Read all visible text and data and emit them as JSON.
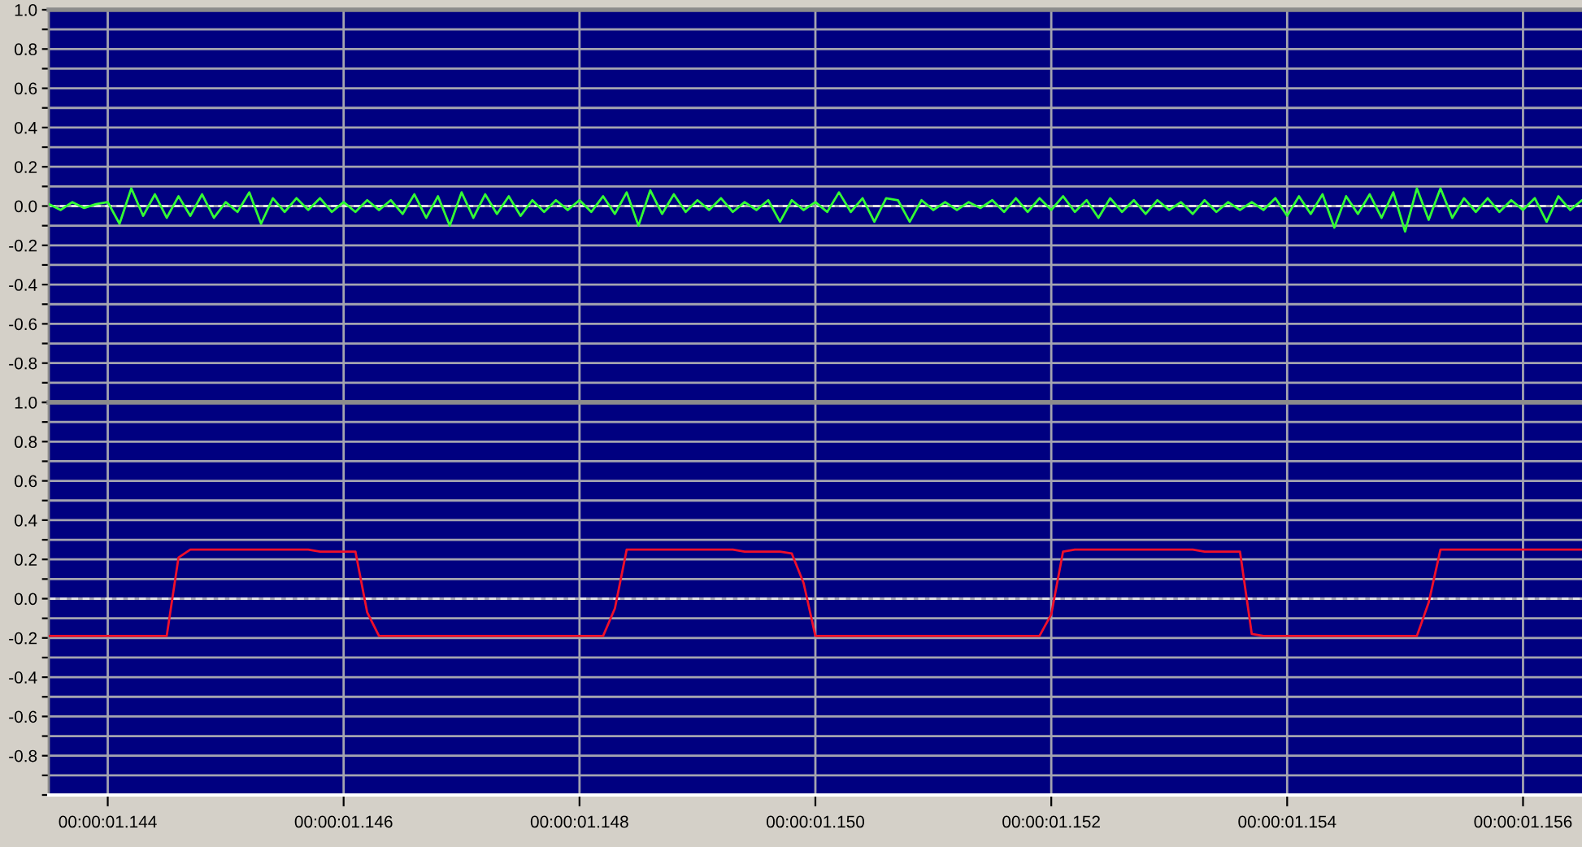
{
  "chart_data": [
    {
      "type": "line",
      "categories": [
        null,
        null,
        null,
        null,
        null,
        null,
        null,
        null,
        null,
        null,
        null,
        null,
        null,
        null,
        null,
        null,
        null,
        null,
        null,
        null,
        null,
        null,
        null,
        null,
        null,
        null,
        null,
        null,
        null,
        null,
        null,
        null,
        null,
        null,
        null,
        null,
        null,
        null,
        null,
        null,
        null,
        null,
        null,
        null,
        null,
        null,
        null,
        null,
        null,
        null,
        null,
        null,
        null,
        null,
        null,
        null,
        null,
        null,
        null,
        null,
        null,
        null,
        null,
        null,
        null,
        null,
        null,
        null,
        null,
        null,
        null,
        null,
        null,
        null,
        null,
        null,
        null,
        null,
        null,
        null,
        null,
        null,
        null,
        null,
        null,
        null,
        null,
        null,
        null,
        null,
        null,
        null,
        null,
        null,
        null,
        null,
        null,
        null,
        null,
        null,
        null,
        null,
        null,
        null,
        null,
        null,
        null,
        null,
        null,
        null,
        null,
        null,
        null,
        null,
        null,
        null,
        null,
        null,
        null,
        null,
        null,
        null,
        null,
        null,
        null,
        null,
        null,
        null,
        null,
        null,
        null
      ],
      "series": [
        {
          "color": "#33ff33",
          "values": [
            0.01,
            -0.02,
            0.02,
            -0.01,
            0.01,
            0.02,
            -0.09,
            0.09,
            -0.05,
            0.06,
            -0.06,
            0.05,
            -0.05,
            0.06,
            -0.06,
            0.02,
            -0.03,
            0.07,
            -0.09,
            0.04,
            -0.03,
            0.04,
            -0.02,
            0.04,
            -0.03,
            0.02,
            -0.03,
            0.03,
            -0.02,
            0.03,
            -0.04,
            0.06,
            -0.06,
            0.05,
            -0.1,
            0.07,
            -0.06,
            0.06,
            -0.04,
            0.05,
            -0.05,
            0.03,
            -0.03,
            0.03,
            -0.02,
            0.03,
            -0.03,
            0.05,
            -0.04,
            0.07,
            -0.1,
            0.08,
            -0.04,
            0.06,
            -0.03,
            0.03,
            -0.02,
            0.04,
            -0.03,
            0.02,
            -0.02,
            0.03,
            -0.08,
            0.03,
            -0.02,
            0.02,
            -0.03,
            0.07,
            -0.03,
            0.04,
            -0.08,
            0.04,
            0.03,
            -0.08,
            0.03,
            -0.02,
            0.02,
            -0.02,
            0.02,
            -0.01,
            0.03,
            -0.03,
            0.04,
            -0.03,
            0.04,
            -0.02,
            0.05,
            -0.03,
            0.03,
            -0.06,
            0.04,
            -0.03,
            0.03,
            -0.04,
            0.03,
            -0.02,
            0.02,
            -0.04,
            0.03,
            -0.03,
            0.02,
            -0.02,
            0.02,
            -0.02,
            0.04,
            -0.05,
            0.05,
            -0.04,
            0.06,
            -0.11,
            0.05,
            -0.04,
            0.06,
            -0.06,
            0.07,
            -0.13,
            0.09,
            -0.07,
            0.09,
            -0.06,
            0.04,
            -0.03,
            0.04,
            -0.03,
            0.03,
            -0.02,
            0.04,
            -0.08,
            0.05,
            -0.02,
            0.03
          ]
        }
      ],
      "ylim": [
        -1.0,
        1.0
      ],
      "yticks": [
        {
          "value": 1.0,
          "label": "1.0"
        },
        {
          "value": 0.9,
          "label": null
        },
        {
          "value": 0.8,
          "label": "0.8"
        },
        {
          "value": 0.7,
          "label": null
        },
        {
          "value": 0.6,
          "label": "0.6"
        },
        {
          "value": 0.5,
          "label": null
        },
        {
          "value": 0.4,
          "label": "0.4"
        },
        {
          "value": 0.3,
          "label": null
        },
        {
          "value": 0.2,
          "label": "0.2"
        },
        {
          "value": 0.1,
          "label": null
        },
        {
          "value": 0,
          "label": "0.0"
        },
        {
          "value": -0.1,
          "label": null
        },
        {
          "value": -0.2,
          "label": "-0.2"
        },
        {
          "value": -0.3,
          "label": null
        },
        {
          "value": -0.4,
          "label": "-0.4"
        },
        {
          "value": -0.5,
          "label": null
        },
        {
          "value": -0.6,
          "label": "-0.6"
        },
        {
          "value": -0.7,
          "label": null
        },
        {
          "value": -0.8,
          "label": "-0.8"
        },
        {
          "value": -0.9,
          "label": null
        },
        {
          "value": -1.0,
          "label": null
        }
      ],
      "grid": true,
      "tick_labels": "y",
      "ref_lines": [
        {
          "axis": "y",
          "value": 0,
          "color": "#e0e0e0",
          "line_style": "dashed"
        }
      ]
    },
    {
      "type": "line",
      "categories": [
        null,
        null,
        null,
        null,
        null,
        "00:00:01.144",
        null,
        null,
        null,
        null,
        null,
        null,
        null,
        null,
        null,
        null,
        null,
        null,
        null,
        null,
        null,
        null,
        null,
        null,
        null,
        "00:00:01.146",
        null,
        null,
        null,
        null,
        null,
        null,
        null,
        null,
        null,
        null,
        null,
        null,
        null,
        null,
        null,
        null,
        null,
        null,
        null,
        "00:00:01.148",
        null,
        null,
        null,
        null,
        null,
        null,
        null,
        null,
        null,
        null,
        null,
        null,
        null,
        null,
        null,
        null,
        null,
        null,
        null,
        "00:00:01.150",
        null,
        null,
        null,
        null,
        null,
        null,
        null,
        null,
        null,
        null,
        null,
        null,
        null,
        null,
        null,
        null,
        null,
        null,
        null,
        "00:00:01.152",
        null,
        null,
        null,
        null,
        null,
        null,
        null,
        null,
        null,
        null,
        null,
        null,
        null,
        null,
        null,
        null,
        null,
        null,
        null,
        "00:00:01.154",
        null,
        null,
        null,
        null,
        null,
        null,
        null,
        null,
        null,
        null,
        null,
        null,
        null,
        null,
        null,
        null,
        null,
        null,
        null,
        "00:00:01.156",
        null,
        null,
        null,
        null,
        null
      ],
      "series": [
        {
          "color": "#f0102a",
          "values": [
            -0.19,
            -0.19,
            -0.19,
            -0.19,
            -0.19,
            -0.19,
            -0.19,
            -0.19,
            -0.19,
            -0.19,
            -0.19,
            0.21,
            0.25,
            0.25,
            0.25,
            0.25,
            0.25,
            0.25,
            0.25,
            0.25,
            0.25,
            0.25,
            0.25,
            0.24,
            0.24,
            0.24,
            0.24,
            -0.07,
            -0.19,
            -0.19,
            -0.19,
            -0.19,
            -0.19,
            -0.19,
            -0.19,
            -0.19,
            -0.19,
            -0.19,
            -0.19,
            -0.19,
            -0.19,
            -0.19,
            -0.19,
            -0.19,
            -0.19,
            -0.19,
            -0.19,
            -0.19,
            -0.05,
            0.25,
            0.25,
            0.25,
            0.25,
            0.25,
            0.25,
            0.25,
            0.25,
            0.25,
            0.25,
            0.24,
            0.24,
            0.24,
            0.24,
            0.23,
            0.08,
            -0.19,
            -0.19,
            -0.19,
            -0.19,
            -0.19,
            -0.19,
            -0.19,
            -0.19,
            -0.19,
            -0.19,
            -0.19,
            -0.19,
            -0.19,
            -0.19,
            -0.19,
            -0.19,
            -0.19,
            -0.19,
            -0.19,
            -0.19,
            -0.08,
            0.24,
            0.25,
            0.25,
            0.25,
            0.25,
            0.25,
            0.25,
            0.25,
            0.25,
            0.25,
            0.25,
            0.25,
            0.24,
            0.24,
            0.24,
            0.24,
            -0.18,
            -0.19,
            -0.19,
            -0.19,
            -0.19,
            -0.19,
            -0.19,
            -0.19,
            -0.19,
            -0.19,
            -0.19,
            -0.19,
            -0.19,
            -0.19,
            -0.19,
            -0.02,
            0.25,
            0.25,
            0.25,
            0.25,
            0.25,
            0.25,
            0.25,
            0.25,
            0.25,
            0.25,
            0.25,
            0.25,
            0.25
          ]
        }
      ],
      "ylim": [
        -1.0,
        1.0
      ],
      "yticks": [
        {
          "value": 1.0,
          "label": "1.0"
        },
        {
          "value": 0.9,
          "label": null
        },
        {
          "value": 0.8,
          "label": "0.8"
        },
        {
          "value": 0.7,
          "label": null
        },
        {
          "value": 0.6,
          "label": "0.6"
        },
        {
          "value": 0.5,
          "label": null
        },
        {
          "value": 0.4,
          "label": "0.4"
        },
        {
          "value": 0.3,
          "label": null
        },
        {
          "value": 0.2,
          "label": "0.2"
        },
        {
          "value": 0.1,
          "label": null
        },
        {
          "value": 0,
          "label": "0.0"
        },
        {
          "value": -0.1,
          "label": null
        },
        {
          "value": -0.2,
          "label": "-0.2"
        },
        {
          "value": -0.3,
          "label": null
        },
        {
          "value": -0.4,
          "label": "-0.4"
        },
        {
          "value": -0.5,
          "label": null
        },
        {
          "value": -0.6,
          "label": "-0.6"
        },
        {
          "value": -0.7,
          "label": null
        },
        {
          "value": -0.8,
          "label": "-0.8"
        },
        {
          "value": -0.9,
          "label": null
        },
        {
          "value": -1.0,
          "label": null
        }
      ],
      "grid": true,
      "ref_lines": [
        {
          "axis": "y",
          "value": 0,
          "color": "#e0e0e0",
          "line_style": "dashed"
        }
      ]
    }
  ]
}
